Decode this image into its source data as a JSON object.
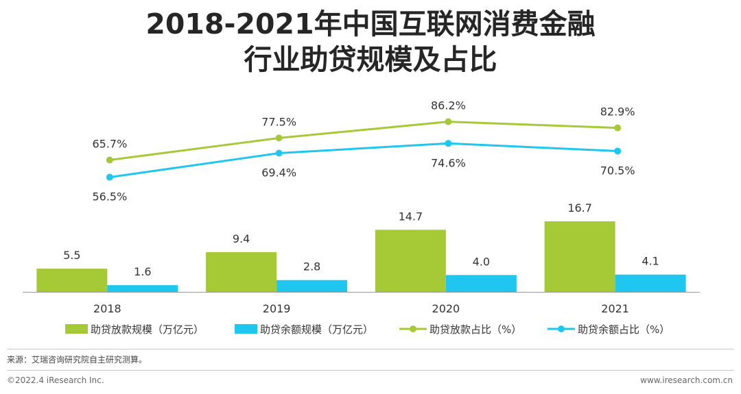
{
  "title_line1": "2018-2021年中国互联网消费金融",
  "title_line2": "行业助贷规模及占比",
  "source": "来源：艾瑞咨询研究院自主研究测算。",
  "copyright": "©2022.4 iResearch Inc.",
  "website": "www.iresearch.com.cn",
  "colors": {
    "green": "#a6c936",
    "blue": "#1fc7f0"
  },
  "chart_data": {
    "type": "bar+line",
    "categories": [
      "2018",
      "2019",
      "2020",
      "2021"
    ],
    "bar_series": [
      {
        "name": "助贷放款规模（万亿元）",
        "values": [
          5.5,
          9.4,
          14.7,
          16.7
        ],
        "labels": [
          "5.5",
          "9.4",
          "14.7",
          "16.7"
        ],
        "color": "green"
      },
      {
        "name": "助贷余额规模（万亿元）",
        "values": [
          1.6,
          2.8,
          4.0,
          4.1
        ],
        "labels": [
          "1.6",
          "2.8",
          "4.0",
          "4.1"
        ],
        "color": "blue"
      }
    ],
    "line_series": [
      {
        "name": "助贷放款占比（%）",
        "values": [
          65.7,
          77.5,
          86.2,
          82.9
        ],
        "labels": [
          "65.7%",
          "77.5%",
          "86.2%",
          "82.9%"
        ],
        "color": "green",
        "label_position": "above"
      },
      {
        "name": "助贷余额占比（%）",
        "values": [
          56.5,
          69.4,
          74.6,
          70.5
        ],
        "labels": [
          "56.5%",
          "69.4%",
          "74.6%",
          "70.5%"
        ],
        "color": "blue",
        "label_position": "below"
      }
    ],
    "bar_ylim": [
      0,
      17.5
    ],
    "line_ylim": [
      45,
      100
    ],
    "legend_position": "bottom"
  }
}
